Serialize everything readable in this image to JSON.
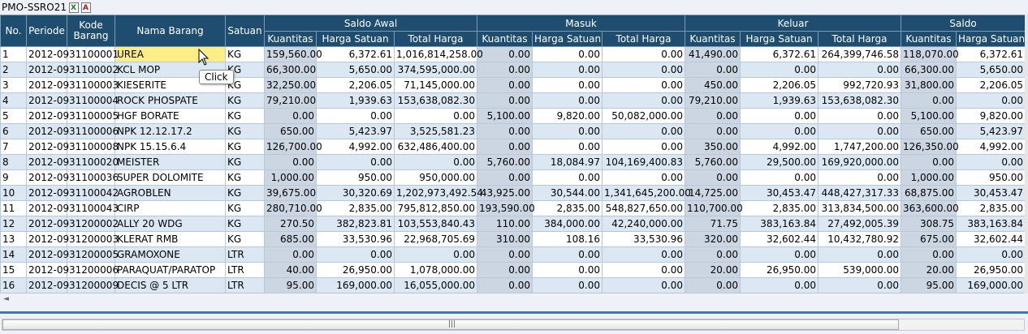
{
  "toolbar": {
    "title": "PMO-SSRO21",
    "icons": [
      "excel-export-icon",
      "pdf-export-icon"
    ]
  },
  "columns": {
    "no": "No.",
    "periode": "Periode",
    "kode_barang": "Kode Barang",
    "nama_barang": "Nama Barang",
    "satuan": "Satuan",
    "groups": {
      "saldo_awal": "Saldo Awal",
      "masuk": "Masuk",
      "keluar": "Keluar",
      "saldo": "Saldo"
    },
    "sub": {
      "kuantitas": "Kuantitas",
      "harga_satuan": "Harga Satuan",
      "total_harga": "Total Harga"
    }
  },
  "rows": [
    [
      "1",
      "2012-09",
      "31100001",
      "UREA",
      "KG",
      "159,560.00",
      "6,372.61",
      "1,016,814,258.00",
      "0.00",
      "0.00",
      "0.00",
      "41,490.00",
      "6,372.61",
      "264,399,746.58",
      "118,070.00",
      "6,372.61"
    ],
    [
      "2",
      "2012-09",
      "31100002",
      "KCL MOP",
      "KG",
      "66,300.00",
      "5,650.00",
      "374,595,000.00",
      "0.00",
      "0.00",
      "0.00",
      "0.00",
      "0.00",
      "0.00",
      "66,300.00",
      "5,650.00"
    ],
    [
      "3",
      "2012-09",
      "31100003",
      "KIESERITE",
      "KG",
      "32,250.00",
      "2,206.05",
      "71,145,000.00",
      "0.00",
      "0.00",
      "0.00",
      "450.00",
      "2,206.05",
      "992,720.93",
      "31,800.00",
      "2,206.05"
    ],
    [
      "4",
      "2012-09",
      "31100004",
      "ROCK PHOSPATE",
      "KG",
      "79,210.00",
      "1,939.63",
      "153,638,082.30",
      "0.00",
      "0.00",
      "0.00",
      "79,210.00",
      "1,939.63",
      "153,638,082.30",
      "0.00",
      "0.00"
    ],
    [
      "5",
      "2012-09",
      "31100005",
      "HGF BORATE",
      "KG",
      "0.00",
      "0.00",
      "0.00",
      "5,100.00",
      "9,820.00",
      "50,082,000.00",
      "0.00",
      "0.00",
      "0.00",
      "5,100.00",
      "9,820.00"
    ],
    [
      "6",
      "2012-09",
      "31100006",
      "NPK 12.12.17.2",
      "KG",
      "650.00",
      "5,423.97",
      "3,525,581.23",
      "0.00",
      "0.00",
      "0.00",
      "0.00",
      "0.00",
      "0.00",
      "650.00",
      "5,423.97"
    ],
    [
      "7",
      "2012-09",
      "31100008",
      "NPK 15.15.6.4",
      "KG",
      "126,700.00",
      "4,992.00",
      "632,486,400.00",
      "0.00",
      "0.00",
      "0.00",
      "350.00",
      "4,992.00",
      "1,747,200.00",
      "126,350.00",
      "4,992.00"
    ],
    [
      "8",
      "2012-09",
      "31100020",
      "MEISTER",
      "KG",
      "0.00",
      "0.00",
      "0.00",
      "5,760.00",
      "18,084.97",
      "104,169,400.83",
      "5,760.00",
      "29,500.00",
      "169,920,000.00",
      "0.00",
      "0.00"
    ],
    [
      "9",
      "2012-09",
      "31100036",
      "SUPER DOLOMITE",
      "KG",
      "1,000.00",
      "950.00",
      "950,000.00",
      "0.00",
      "0.00",
      "0.00",
      "0.00",
      "0.00",
      "0.00",
      "1,000.00",
      "950.00"
    ],
    [
      "10",
      "2012-09",
      "31100042",
      "AGROBLEN",
      "KG",
      "39,675.00",
      "30,320.69",
      "1,202,973,492.54",
      "43,925.00",
      "30,544.00",
      "1,341,645,200.00",
      "14,725.00",
      "30,453.47",
      "448,427,317.33",
      "68,875.00",
      "30,453.47"
    ],
    [
      "11",
      "2012-09",
      "31100043",
      "CIRP",
      "KG",
      "280,710.00",
      "2,835.00",
      "795,812,850.00",
      "193,590.00",
      "2,835.00",
      "548,827,650.00",
      "110,700.00",
      "2,835.00",
      "313,834,500.00",
      "363,600.00",
      "2,835.00"
    ],
    [
      "12",
      "2012-09",
      "31200002",
      "ALLY 20 WDG",
      "KG",
      "270.50",
      "382,823.81",
      "103,553,840.43",
      "110.00",
      "384,000.00",
      "42,240,000.00",
      "71.75",
      "383,163.84",
      "27,492,005.39",
      "308.75",
      "383,163.84"
    ],
    [
      "13",
      "2012-09",
      "31200003",
      "KLERAT RMB",
      "KG",
      "685.00",
      "33,530.96",
      "22,968,705.69",
      "310.00",
      "108.16",
      "33,530.96",
      "320.00",
      "32,602.44",
      "10,432,780.92",
      "675.00",
      "32,602.44"
    ],
    [
      "14",
      "2012-09",
      "31200005",
      "GRAMOXONE",
      "LTR",
      "0.00",
      "0.00",
      "0.00",
      "0.00",
      "0.00",
      "0.00",
      "0.00",
      "0.00",
      "0.00",
      "0.00",
      "0.00"
    ],
    [
      "15",
      "2012-09",
      "31200006",
      "PARAQUAT/PARATOP",
      "LTR",
      "40.00",
      "26,950.00",
      "1,078,000.00",
      "0.00",
      "0.00",
      "0.00",
      "20.00",
      "26,950.00",
      "539,000.00",
      "20.00",
      "26,950.00"
    ],
    [
      "16",
      "2012-09",
      "31200009",
      "DECIS @ 5 LTR",
      "LTR",
      "95.00",
      "169,000.00",
      "16,055,000.00",
      "0.00",
      "0.00",
      "0.00",
      "0.00",
      "0.00",
      "0.00",
      "95.00",
      "169,000.00"
    ]
  ],
  "selected_row_index": 0,
  "tooltip": {
    "text": "Click"
  },
  "scrollbar": {
    "grip": "|||",
    "left_arrow": "◄"
  }
}
